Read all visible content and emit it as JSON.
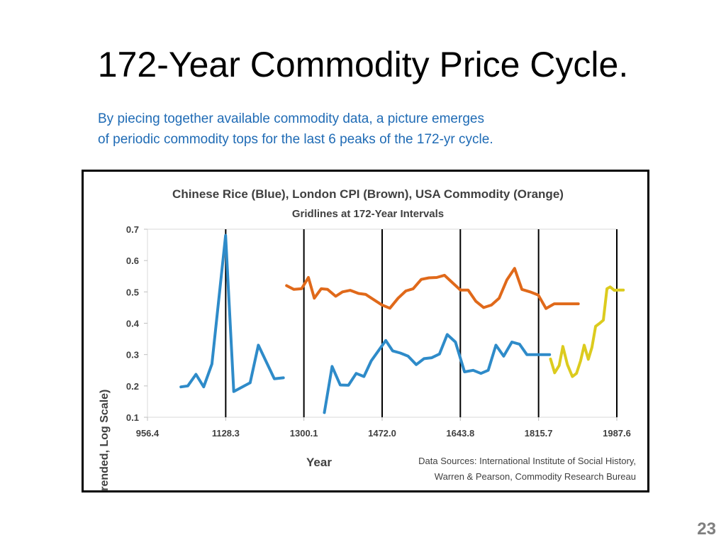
{
  "slide": {
    "title": "172-Year Commodity Price Cycle.",
    "subtitle_lines": [
      "By piecing together available commodity data, a picture emerges",
      "of periodic commodity tops for the last 6 peaks of the 172-yr cycle."
    ],
    "page_number": "23"
  },
  "chart_data": {
    "type": "line",
    "title": "Chinese Rice (Blue), London CPI (Brown), USA Commodity  (Orange)",
    "subtitle": "Gridlines at 172-Year Intervals",
    "xlabel": "Year",
    "ylabel": "Prices (Detrended, Log Scale)",
    "xlim": [
      956.4,
      1987.6
    ],
    "ylim": [
      0.1,
      0.7
    ],
    "x_ticks": [
      "956.4",
      "1128.3",
      "1300.1",
      "1472.0",
      "1643.8",
      "1815.7",
      "1987.6"
    ],
    "y_ticks": [
      "0.1",
      "0.2",
      "0.3",
      "0.4",
      "0.5",
      "0.6",
      "0.7"
    ],
    "vertical_gridlines_at": [
      1128.3,
      1300.1,
      1472.0,
      1643.8,
      1815.7,
      1987.6
    ],
    "legend": "none (series identified in title)",
    "source_note": [
      "Data Sources:  International Institute of Social History,",
      "Warren & Pearson, Commodity Research Bureau"
    ],
    "colors": {
      "blue": "#2e8bc9",
      "brown": "#e0691a",
      "orange": "#dccb1e",
      "grid": "#000000"
    },
    "series": [
      {
        "color": "#2e8bc9",
        "x": [
          1030,
          1045,
          1063,
          1080,
          1098,
          1128,
          1146,
          1182,
          1200,
          1235,
          1255
        ],
        "y": [
          0.197,
          0.2,
          0.237,
          0.197,
          0.27,
          0.68,
          0.182,
          0.21,
          0.33,
          0.223,
          0.226
        ]
      },
      {
        "color": "#2e8bc9",
        "x": [
          1345,
          1362,
          1380,
          1398,
          1415,
          1432,
          1448,
          1480,
          1495,
          1512,
          1529,
          1547,
          1564,
          1581,
          1598,
          1615,
          1633,
          1653,
          1672,
          1689,
          1705,
          1722,
          1739,
          1757,
          1774,
          1790,
          1809,
          1824,
          1840
        ],
        "y": [
          0.115,
          0.262,
          0.203,
          0.202,
          0.24,
          0.23,
          0.28,
          0.345,
          0.312,
          0.305,
          0.295,
          0.268,
          0.287,
          0.29,
          0.302,
          0.364,
          0.34,
          0.245,
          0.25,
          0.24,
          0.25,
          0.33,
          0.295,
          0.34,
          0.333,
          0.3,
          0.3,
          0.3,
          0.3
        ]
      },
      {
        "color": "#e0691a",
        "x": [
          1262,
          1278,
          1295,
          1310,
          1323,
          1338,
          1352,
          1370,
          1385,
          1402,
          1420,
          1436,
          1454,
          1472,
          1489,
          1507,
          1524,
          1540,
          1558,
          1575,
          1592,
          1609,
          1626,
          1644,
          1661,
          1678,
          1695,
          1712,
          1729,
          1746,
          1763,
          1779,
          1797,
          1815,
          1832,
          1850,
          1867,
          1886,
          1903
        ],
        "y": [
          0.52,
          0.508,
          0.51,
          0.546,
          0.48,
          0.51,
          0.508,
          0.486,
          0.5,
          0.505,
          0.495,
          0.492,
          0.475,
          0.458,
          0.448,
          0.48,
          0.503,
          0.51,
          0.54,
          0.545,
          0.546,
          0.553,
          0.53,
          0.506,
          0.506,
          0.47,
          0.45,
          0.458,
          0.48,
          0.538,
          0.575,
          0.508,
          0.5,
          0.49,
          0.447,
          0.462,
          0.462,
          0.462,
          0.462
        ]
      },
      {
        "color": "#dccb1e",
        "x": [
          1842,
          1851,
          1861,
          1869,
          1879,
          1890,
          1899,
          1908,
          1916,
          1925,
          1933,
          1941,
          1950,
          1958,
          1966,
          1973,
          1982,
          1990,
          2002
        ],
        "y": [
          0.286,
          0.242,
          0.265,
          0.326,
          0.268,
          0.23,
          0.24,
          0.28,
          0.33,
          0.285,
          0.323,
          0.39,
          0.4,
          0.41,
          0.51,
          0.516,
          0.505,
          0.506,
          0.506
        ]
      }
    ]
  }
}
